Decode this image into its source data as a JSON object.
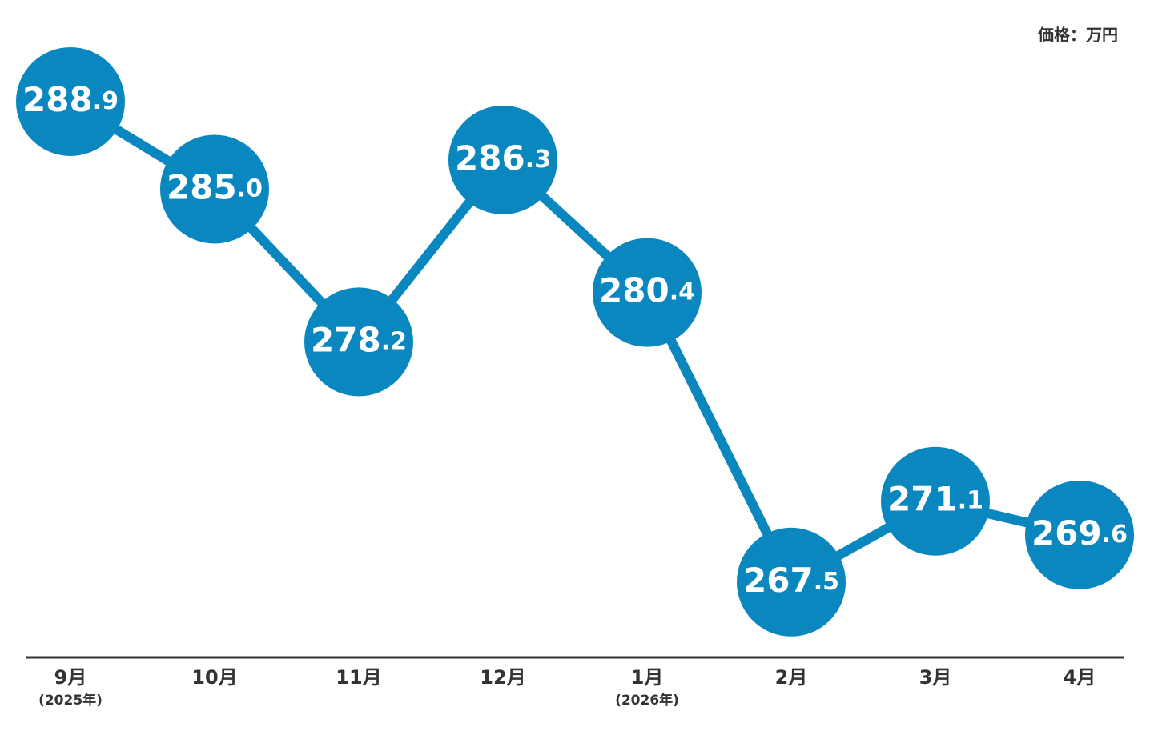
{
  "chart_data": {
    "type": "line",
    "unit_label": "価格：万円",
    "categories": [
      "9月",
      "10月",
      "11月",
      "12月",
      "1月",
      "2月",
      "3月",
      "4月"
    ],
    "category_notes": [
      "(2025年)",
      null,
      null,
      null,
      "(2026年)",
      null,
      null,
      null
    ],
    "values": [
      288.9,
      285.0,
      278.2,
      286.3,
      280.4,
      267.5,
      271.1,
      269.6
    ],
    "value_labels": [
      "288.9",
      "285.0",
      "278.2",
      "286.3",
      "280.4",
      "267.5",
      "271.1",
      "269.6"
    ],
    "color": "#0a87bf",
    "ylim": [
      265,
      291
    ]
  }
}
